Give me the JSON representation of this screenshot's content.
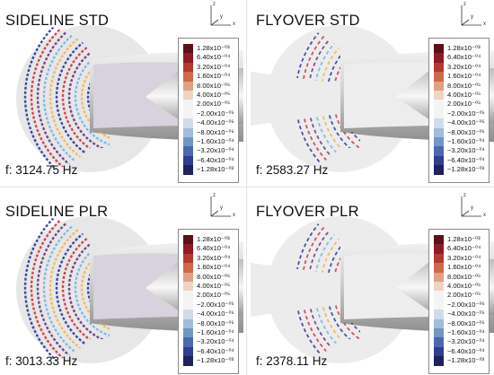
{
  "panels": [
    {
      "title": "SIDELINE STD",
      "frequency": "f: 3124.75 Hz",
      "pattern": "sideline"
    },
    {
      "title": "FLYOVER STD",
      "frequency": "f: 2583.27 Hz",
      "pattern": "flyover"
    },
    {
      "title": "SIDELINE PLR",
      "frequency": "f: 3013.33 Hz",
      "pattern": "sideline"
    },
    {
      "title": "FLYOVER PLR",
      "frequency": "f: 2378.11 Hz",
      "pattern": "flyover"
    }
  ],
  "axes": {
    "z": "z",
    "y": "y",
    "x": "x"
  },
  "colorbar": {
    "labels": [
      "1.28x10⁻⁰³",
      "6.40x10⁻⁰⁴",
      "3.20x10⁻⁰⁴",
      "1.60x10⁻⁰⁴",
      "8.00x10⁻⁰⁵",
      "4.00x10⁻⁰⁵",
      "2.00x10⁻⁰⁵",
      "−2.00x10⁻⁰⁵",
      "−4.00x10⁻⁰⁵",
      "−8.00x10⁻⁰⁵",
      "−1.60x10⁻⁰⁴",
      "−3.20x10⁻⁰⁴",
      "−6.40x10⁻⁰⁴",
      "−1.28x10⁻⁰³"
    ],
    "colors": [
      "#5c1018",
      "#8e1b26",
      "#b23a33",
      "#cd6a4a",
      "#e0a184",
      "#efd3c4",
      "#f4f4f4",
      "#f4f4f4",
      "#cfdcec",
      "#a3bcdb",
      "#7196c4",
      "#4b69ab",
      "#2f3e8e",
      "#1f205d"
    ]
  }
}
